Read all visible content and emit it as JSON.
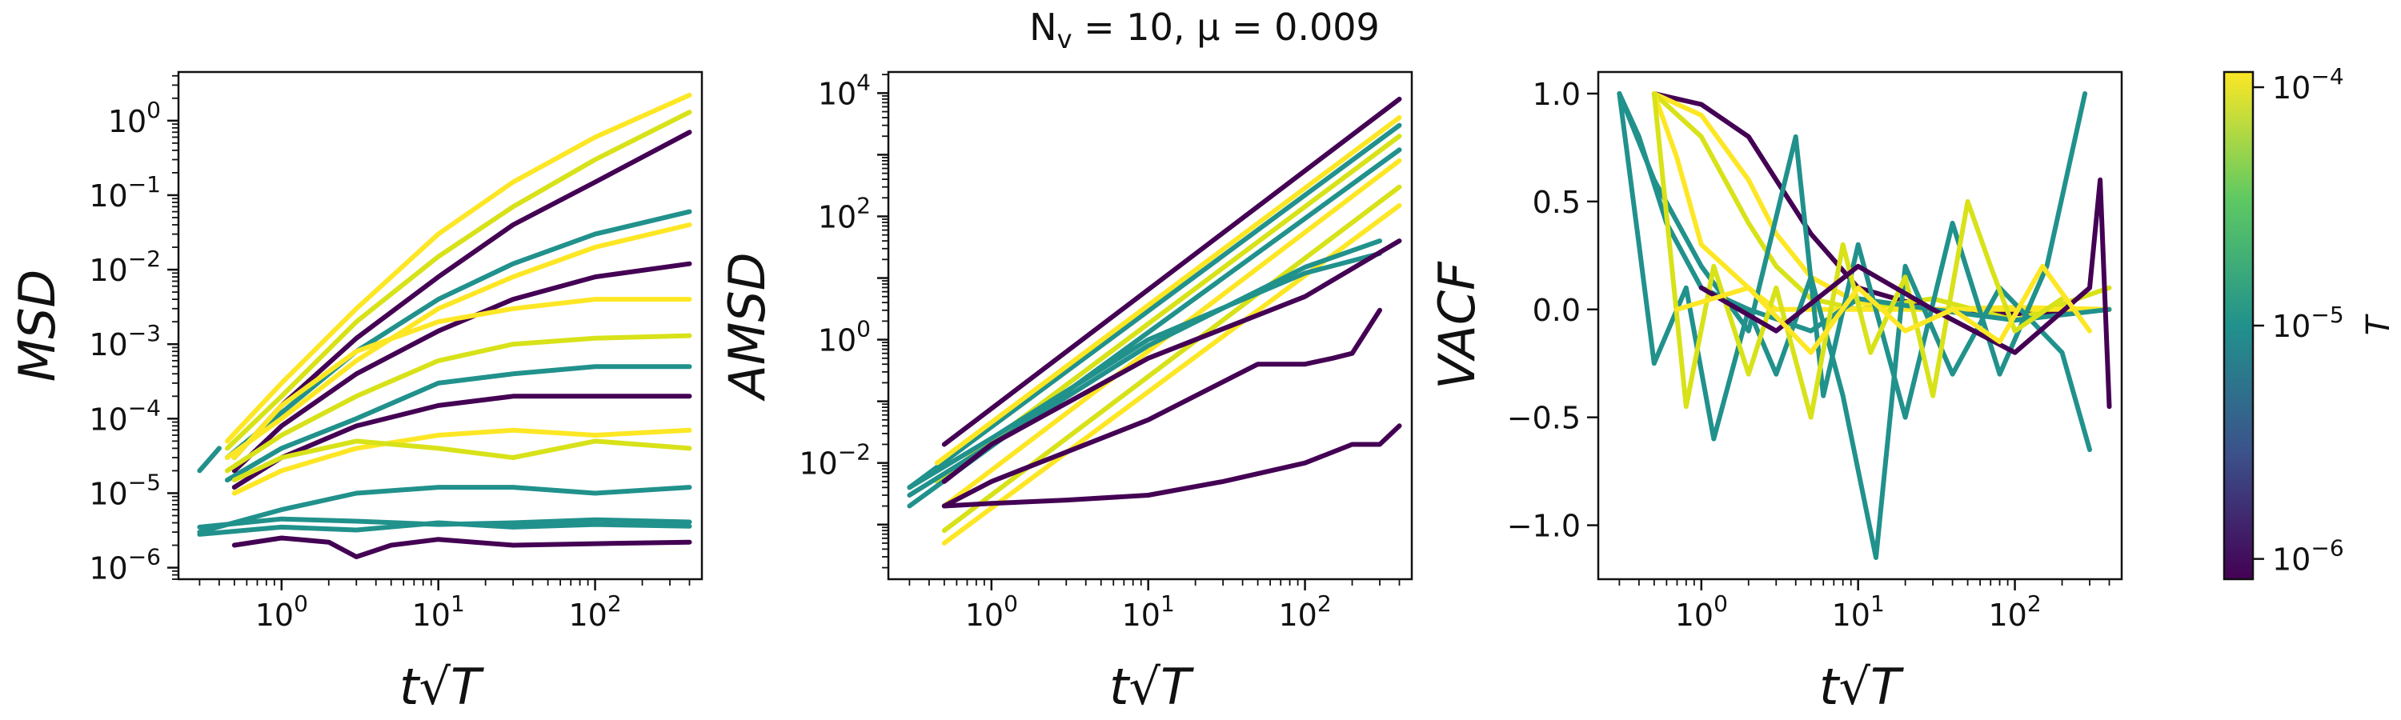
{
  "figure": {
    "title": "N_v = 10, μ = 0.009",
    "title_main": "N",
    "title_sub": "v",
    "title_rest": " = 10, μ = 0.009"
  },
  "chart_data": [
    {
      "type": "line",
      "id": "msd",
      "ylabel": "MSD",
      "xlabel": "t√T",
      "xscale": "log",
      "yscale": "log",
      "xlim": [
        0.22,
        480
      ],
      "ylim": [
        7e-07,
        4.5
      ],
      "xticks": [
        {
          "v": 1,
          "exp": "0"
        },
        {
          "v": 10,
          "exp": "1"
        },
        {
          "v": 100,
          "exp": "2"
        }
      ],
      "yticks": [
        {
          "v": 1,
          "exp": "0"
        },
        {
          "v": 0.1,
          "exp": "−1"
        },
        {
          "v": 0.01,
          "exp": "−2"
        },
        {
          "v": 0.001,
          "exp": "−3"
        },
        {
          "v": 0.0001,
          "exp": "−4"
        },
        {
          "v": 1e-05,
          "exp": "−5"
        },
        {
          "v": 1e-06,
          "exp": "−6"
        }
      ],
      "tick_base": "10",
      "series": [
        {
          "color": "#21918c",
          "x": [
            0.3,
            0.4
          ],
          "y": [
            2e-05,
            4e-05
          ]
        },
        {
          "color": "#fde725",
          "x": [
            0.45,
            1,
            3,
            10,
            30,
            100,
            400
          ],
          "y": [
            5e-05,
            0.0003,
            0.003,
            0.03,
            0.15,
            0.6,
            2.2
          ]
        },
        {
          "color": "#d8e219",
          "x": [
            0.45,
            1,
            3,
            10,
            30,
            100,
            400
          ],
          "y": [
            4e-05,
            0.0002,
            0.002,
            0.015,
            0.07,
            0.3,
            1.3
          ]
        },
        {
          "color": "#440154",
          "x": [
            0.5,
            1,
            3,
            10,
            30,
            100,
            400
          ],
          "y": [
            3e-05,
            0.00015,
            0.0012,
            0.008,
            0.04,
            0.15,
            0.7
          ]
        },
        {
          "color": "#21918c",
          "x": [
            0.45,
            1,
            3,
            10,
            30,
            100,
            400
          ],
          "y": [
            3e-05,
            0.00012,
            0.0008,
            0.004,
            0.012,
            0.03,
            0.06
          ]
        },
        {
          "color": "#fde725",
          "x": [
            0.45,
            1,
            3,
            10,
            30,
            100,
            400
          ],
          "y": [
            3e-05,
            0.0001,
            0.0006,
            0.003,
            0.008,
            0.02,
            0.04
          ]
        },
        {
          "color": "#440154",
          "x": [
            0.5,
            1,
            3,
            10,
            30,
            100,
            400
          ],
          "y": [
            2e-05,
            8e-05,
            0.0004,
            0.0015,
            0.004,
            0.008,
            0.012
          ]
        },
        {
          "color": "#d8e219",
          "x": [
            0.45,
            1,
            3,
            10,
            30,
            100,
            400
          ],
          "y": [
            2e-05,
            6e-05,
            0.0002,
            0.0006,
            0.001,
            0.0012,
            0.0013
          ]
        },
        {
          "color": "#21918c",
          "x": [
            0.45,
            1,
            3,
            10,
            30,
            100,
            400
          ],
          "y": [
            1.5e-05,
            4e-05,
            0.0001,
            0.0003,
            0.0004,
            0.0005,
            0.0005
          ]
        },
        {
          "color": "#440154",
          "x": [
            0.5,
            1,
            3,
            10,
            30,
            100,
            400
          ],
          "y": [
            1.2e-05,
            3e-05,
            8e-05,
            0.00015,
            0.0002,
            0.0002,
            0.0002
          ]
        },
        {
          "color": "#fde725",
          "x": [
            0.5,
            1,
            3,
            10,
            30,
            100,
            400
          ],
          "y": [
            1e-05,
            2e-05,
            4e-05,
            6e-05,
            7e-05,
            6e-05,
            7e-05
          ]
        },
        {
          "color": "#21918c",
          "x": [
            0.3,
            1,
            3,
            10,
            30,
            100,
            400
          ],
          "y": [
            3e-06,
            6e-06,
            1e-05,
            1.2e-05,
            1.2e-05,
            1e-05,
            1.2e-05
          ]
        },
        {
          "color": "#21918c",
          "x": [
            0.3,
            1,
            3,
            10,
            30,
            100,
            400
          ],
          "y": [
            2.8e-06,
            3.5e-06,
            3.2e-06,
            4e-06,
            3.5e-06,
            3.8e-06,
            3.6e-06
          ]
        },
        {
          "color": "#440154",
          "x": [
            0.5,
            1,
            2,
            3,
            5,
            10,
            30,
            100,
            400
          ],
          "y": [
            2e-06,
            2.5e-06,
            2.2e-06,
            1.4e-06,
            2e-06,
            2.4e-06,
            2e-06,
            2.1e-06,
            2.2e-06
          ]
        },
        {
          "color": "#21918c",
          "x": [
            0.3,
            1,
            3,
            10,
            30,
            100,
            400
          ],
          "y": [
            3.5e-06,
            4.5e-06,
            4.2e-06,
            3.8e-06,
            4e-06,
            4.4e-06,
            4.1e-06
          ]
        },
        {
          "color": "#d8e219",
          "x": [
            0.5,
            1,
            3,
            10,
            30,
            100,
            400
          ],
          "y": [
            1.5e-05,
            3e-05,
            5e-05,
            4e-05,
            3e-05,
            5e-05,
            4e-05
          ]
        },
        {
          "color": "#fde725",
          "x": [
            0.5,
            1,
            3,
            10,
            30,
            100,
            400
          ],
          "y": [
            3e-05,
            0.00015,
            0.0008,
            0.002,
            0.003,
            0.004,
            0.004
          ]
        }
      ]
    },
    {
      "type": "line",
      "id": "amsd",
      "ylabel": "AMSD",
      "xlabel": "t√T",
      "xscale": "log",
      "yscale": "log",
      "xlim": [
        0.22,
        480
      ],
      "ylim": [
        0.00013,
        22000
      ],
      "xticks": [
        {
          "v": 1,
          "exp": "0"
        },
        {
          "v": 10,
          "exp": "1"
        },
        {
          "v": 100,
          "exp": "2"
        }
      ],
      "yticks": [
        {
          "v": 10000,
          "exp": "4"
        },
        {
          "v": 100,
          "exp": "2"
        },
        {
          "v": 1,
          "exp": "0"
        },
        {
          "v": 0.01,
          "exp": "−2"
        }
      ],
      "tick_base": "10",
      "series": [
        {
          "color": "#440154",
          "x": [
            0.5,
            400
          ],
          "y": [
            0.02,
            8000
          ]
        },
        {
          "color": "#21918c",
          "x": [
            0.3,
            400
          ],
          "y": [
            0.004,
            3000
          ]
        },
        {
          "color": "#fde725",
          "x": [
            0.45,
            400
          ],
          "y": [
            0.01,
            4000
          ]
        },
        {
          "color": "#d8e219",
          "x": [
            0.45,
            400
          ],
          "y": [
            0.005,
            2000
          ]
        },
        {
          "color": "#21918c",
          "x": [
            0.3,
            400
          ],
          "y": [
            0.002,
            1200
          ]
        },
        {
          "color": "#fde725",
          "x": [
            0.5,
            400
          ],
          "y": [
            0.002,
            800
          ]
        },
        {
          "color": "#d8e219",
          "x": [
            0.5,
            400
          ],
          "y": [
            0.0008,
            300
          ]
        },
        {
          "color": "#fde725",
          "x": [
            0.5,
            400
          ],
          "y": [
            0.0005,
            150
          ]
        },
        {
          "color": "#21918c",
          "x": [
            0.3,
            1,
            10,
            100,
            300
          ],
          "y": [
            0.003,
            0.02,
            0.8,
            15,
            40
          ]
        },
        {
          "color": "#21918c",
          "x": [
            0.3,
            1,
            10,
            100,
            300
          ],
          "y": [
            0.004,
            0.025,
            1,
            12,
            25
          ]
        },
        {
          "color": "#440154",
          "x": [
            0.5,
            1,
            10,
            100,
            400
          ],
          "y": [
            0.005,
            0.02,
            0.5,
            5,
            40
          ]
        },
        {
          "color": "#440154",
          "x": [
            0.5,
            1,
            10,
            50,
            100,
            150,
            200,
            300
          ],
          "y": [
            0.002,
            0.005,
            0.05,
            0.4,
            0.4,
            0.5,
            0.6,
            3
          ]
        },
        {
          "color": "#440154",
          "x": [
            0.5,
            1,
            3,
            10,
            30,
            100,
            200,
            300,
            400
          ],
          "y": [
            0.002,
            0.0022,
            0.0025,
            0.003,
            0.005,
            0.01,
            0.02,
            0.02,
            0.04
          ]
        }
      ]
    },
    {
      "type": "line",
      "id": "vacf",
      "ylabel": "VACF",
      "xlabel": "t√T",
      "xscale": "log",
      "yscale": "linear",
      "xlim": [
        0.22,
        480
      ],
      "ylim": [
        -1.25,
        1.1
      ],
      "xticks": [
        {
          "v": 1,
          "exp": "0"
        },
        {
          "v": 10,
          "exp": "1"
        },
        {
          "v": 100,
          "exp": "2"
        }
      ],
      "yticks": [
        {
          "v": 1,
          "label": "1.0"
        },
        {
          "v": 0.5,
          "label": "0.5"
        },
        {
          "v": 0,
          "label": "0.0"
        },
        {
          "v": -0.5,
          "label": "−0.5"
        },
        {
          "v": -1,
          "label": "−1.0"
        }
      ],
      "tick_base": "10",
      "series": [
        {
          "color": "#440154",
          "x": [
            0.5,
            1,
            2,
            3,
            5,
            10,
            30,
            100,
            400
          ],
          "y": [
            1.0,
            0.95,
            0.8,
            0.6,
            0.35,
            0.1,
            0.0,
            -0.02,
            0.0
          ]
        },
        {
          "color": "#fde725",
          "x": [
            0.5,
            1,
            2,
            3,
            5,
            10,
            30,
            100,
            400
          ],
          "y": [
            1.0,
            0.9,
            0.6,
            0.35,
            0.15,
            0.03,
            0.0,
            0.01,
            0.0
          ]
        },
        {
          "color": "#d8e219",
          "x": [
            0.5,
            1,
            2,
            3,
            5,
            10,
            30,
            100,
            400
          ],
          "y": [
            1.0,
            0.8,
            0.4,
            0.2,
            0.05,
            0.0,
            0.05,
            -0.05,
            0.1
          ]
        },
        {
          "color": "#fde725",
          "x": [
            0.5,
            0.7,
            1,
            2,
            3,
            10,
            30,
            100,
            400
          ],
          "y": [
            1.0,
            0.7,
            0.3,
            0.1,
            0.0,
            0.0,
            0.0,
            0.0,
            0.0
          ]
        },
        {
          "color": "#21918c",
          "x": [
            0.3,
            0.4,
            0.6,
            1,
            2,
            5,
            10,
            30,
            100,
            400
          ],
          "y": [
            1.0,
            0.8,
            0.4,
            0.1,
            0.0,
            -0.1,
            0.05,
            0.0,
            -0.05,
            0.0
          ]
        },
        {
          "color": "#21918c",
          "x": [
            0.3,
            0.4,
            0.5,
            0.8,
            1.2,
            2,
            3,
            5,
            8,
            13,
            20,
            40,
            80,
            200,
            300
          ],
          "y": [
            1.0,
            0.3,
            -0.25,
            0.1,
            -0.6,
            0.0,
            -0.3,
            0.15,
            -0.4,
            -1.15,
            0.2,
            -0.3,
            0.1,
            -0.2,
            -0.65
          ]
        },
        {
          "color": "#21918c",
          "x": [
            0.3,
            0.5,
            1,
            2,
            4,
            6,
            10,
            20,
            40,
            80,
            160,
            280
          ],
          "y": [
            1.0,
            0.6,
            0.2,
            -0.1,
            0.8,
            -0.4,
            0.3,
            -0.5,
            0.4,
            -0.3,
            0.2,
            1.0
          ]
        },
        {
          "color": "#d8e219",
          "x": [
            0.5,
            0.8,
            1.2,
            2,
            3,
            5,
            8,
            12,
            20,
            30,
            50,
            70,
            100,
            200
          ],
          "y": [
            1.0,
            -0.45,
            0.2,
            -0.3,
            0.1,
            -0.5,
            0.3,
            -0.2,
            0.15,
            -0.4,
            0.5,
            0.2,
            -0.1,
            0.05
          ]
        },
        {
          "color": "#440154",
          "x": [
            1,
            3,
            10,
            30,
            100,
            300,
            350,
            400
          ],
          "y": [
            0.1,
            -0.1,
            0.2,
            0.0,
            -0.2,
            0.1,
            0.6,
            -0.45
          ]
        },
        {
          "color": "#fde725",
          "x": [
            0.7,
            2,
            5,
            10,
            20,
            40,
            80,
            150,
            300
          ],
          "y": [
            0.0,
            0.1,
            -0.2,
            0.1,
            -0.1,
            0.0,
            -0.15,
            0.2,
            -0.1
          ]
        }
      ]
    }
  ],
  "colorbar": {
    "label": "T",
    "tick_base": "10",
    "ticks": [
      {
        "exp": "−4",
        "pos": 0.03
      },
      {
        "exp": "−5",
        "pos": 0.5
      },
      {
        "exp": "−6",
        "pos": 0.96
      }
    ],
    "stops": [
      "#440154",
      "#3b528b",
      "#21918c",
      "#5ec962",
      "#fde725"
    ]
  }
}
